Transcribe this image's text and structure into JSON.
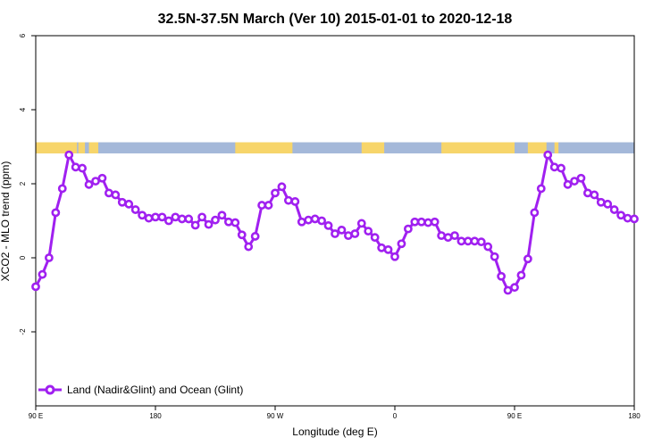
{
  "chart_data": {
    "type": "line",
    "title": "32.5N-37.5N March (Ver 10)   2015-01-01 to 2020-12-18",
    "xlabel": "Longitude (deg E)",
    "ylabel": "XCO2 - MLO trend (ppm)",
    "xlim": [
      90,
      540
    ],
    "ylim": [
      -4,
      6
    ],
    "x_ticks": [
      {
        "value": 90,
        "label": "90 E"
      },
      {
        "value": 180,
        "label": "180"
      },
      {
        "value": 270,
        "label": "90 W"
      },
      {
        "value": 360,
        "label": "0"
      },
      {
        "value": 450,
        "label": "90 E"
      },
      {
        "value": 540,
        "label": "180"
      }
    ],
    "y_ticks": [
      {
        "value": -2,
        "label": "-2"
      },
      {
        "value": 0,
        "label": "0"
      },
      {
        "value": 2,
        "label": "2"
      },
      {
        "value": 4,
        "label": "4"
      },
      {
        "value": 6,
        "label": "6"
      }
    ],
    "grid": false,
    "legend": {
      "position": "bottom-left",
      "label": "Land (Nadir&Glint) and Ocean (Glint)"
    },
    "series_color": "#a020f0",
    "land_color": "#f7d56a",
    "ocean_color": "#a4b8d9",
    "land_mask": {
      "y_range": [
        2.82,
        3.12
      ],
      "land_segments": [
        [
          90,
          121
        ],
        [
          122,
          127
        ],
        [
          130,
          137
        ],
        [
          240,
          283
        ],
        [
          335,
          352
        ],
        [
          395,
          450
        ],
        [
          460,
          474
        ],
        [
          480,
          483
        ]
      ]
    },
    "series": [
      {
        "name": "Land (Nadir&Glint) and Ocean (Glint)",
        "x": [
          90,
          95,
          100,
          105,
          110,
          115,
          120,
          125,
          130,
          135,
          140,
          145,
          150,
          155,
          160,
          165,
          170,
          175,
          180,
          185,
          190,
          195,
          200,
          205,
          210,
          215,
          220,
          225,
          230,
          235,
          240,
          245,
          250,
          255,
          260,
          265,
          270,
          275,
          280,
          285,
          290,
          295,
          300,
          305,
          310,
          315,
          320,
          325,
          330,
          335,
          340,
          345,
          350,
          355,
          360,
          365,
          370,
          375,
          380,
          385,
          390,
          395,
          400,
          405,
          410,
          415,
          420,
          425,
          430,
          435,
          440,
          445,
          450,
          455,
          460,
          465,
          470,
          475,
          480,
          485,
          490,
          495,
          500,
          505,
          510,
          515,
          520,
          525,
          530,
          535,
          540
        ],
        "values": [
          -0.78,
          -0.45,
          0.0,
          1.22,
          1.87,
          2.78,
          2.45,
          2.42,
          1.98,
          2.07,
          2.15,
          1.75,
          1.7,
          1.5,
          1.45,
          1.3,
          1.15,
          1.07,
          1.1,
          1.1,
          1.0,
          1.1,
          1.05,
          1.05,
          0.88,
          1.1,
          0.9,
          1.02,
          1.15,
          0.97,
          0.95,
          0.62,
          0.3,
          0.58,
          1.42,
          1.42,
          1.75,
          1.92,
          1.55,
          1.52,
          0.97,
          1.02,
          1.05,
          1.0,
          0.87,
          0.65,
          0.75,
          0.6,
          0.65,
          0.93,
          0.72,
          0.55,
          0.27,
          0.22,
          0.03,
          0.38,
          0.78,
          0.97,
          0.97,
          0.95,
          0.97,
          0.6,
          0.55,
          0.6,
          0.45,
          0.45,
          0.45,
          0.43,
          0.3,
          0.03,
          -0.5,
          -0.88,
          -0.8,
          -0.47,
          -0.03,
          1.22,
          1.87,
          2.78,
          2.45,
          2.42,
          1.98,
          2.07,
          2.15,
          1.75,
          1.7,
          1.5,
          1.45,
          1.3,
          1.15,
          1.07,
          1.05
        ]
      }
    ]
  }
}
